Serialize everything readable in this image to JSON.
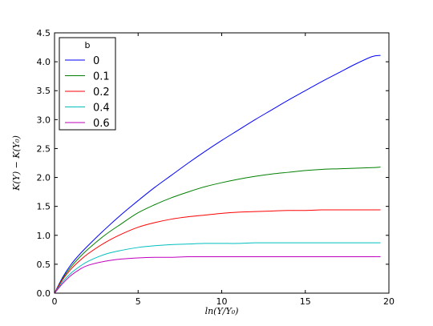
{
  "chart_data": {
    "type": "line",
    "title": "",
    "xlabel": "ln(Y/Y₀)",
    "ylabel": "K(Y) − K(Y₀)",
    "xlim": [
      0,
      20
    ],
    "ylim": [
      0,
      4.5
    ],
    "xticks": [
      "0",
      "5",
      "10",
      "15",
      "20"
    ],
    "yticks": [
      "0.0",
      "0.5",
      "1.0",
      "1.5",
      "2.0",
      "2.5",
      "3.0",
      "3.5",
      "4.0",
      "4.5"
    ],
    "grid": false,
    "legend": {
      "title": "b",
      "placement": "top-left"
    },
    "x": [
      0,
      0.5,
      1,
      1.5,
      2,
      3,
      4,
      5,
      6,
      7,
      8,
      9,
      10,
      11,
      12,
      13,
      14,
      15,
      16,
      17,
      18,
      19,
      19.5
    ],
    "series": [
      {
        "name": "0",
        "color": "#0000ff",
        "values": [
          0,
          0.28,
          0.5,
          0.67,
          0.82,
          1.1,
          1.36,
          1.6,
          1.83,
          2.04,
          2.25,
          2.45,
          2.64,
          2.82,
          3.0,
          3.17,
          3.34,
          3.5,
          3.66,
          3.81,
          3.96,
          4.09,
          4.11
        ]
      },
      {
        "name": "0.1",
        "color": "#008000",
        "values": [
          0,
          0.26,
          0.46,
          0.62,
          0.76,
          1.0,
          1.2,
          1.39,
          1.53,
          1.65,
          1.75,
          1.84,
          1.91,
          1.97,
          2.02,
          2.06,
          2.09,
          2.12,
          2.14,
          2.15,
          2.16,
          2.17,
          2.18
        ]
      },
      {
        "name": "0.2",
        "color": "#ff0000",
        "values": [
          0,
          0.24,
          0.42,
          0.56,
          0.68,
          0.87,
          1.02,
          1.14,
          1.22,
          1.28,
          1.32,
          1.35,
          1.38,
          1.4,
          1.41,
          1.42,
          1.43,
          1.43,
          1.44,
          1.44,
          1.44,
          1.44,
          1.44
        ]
      },
      {
        "name": "0.4",
        "color": "#00bfbf",
        "values": [
          0,
          0.2,
          0.35,
          0.46,
          0.55,
          0.67,
          0.74,
          0.79,
          0.82,
          0.84,
          0.85,
          0.86,
          0.86,
          0.86,
          0.87,
          0.87,
          0.87,
          0.87,
          0.87,
          0.87,
          0.87,
          0.87,
          0.87
        ]
      },
      {
        "name": "0.6",
        "color": "#bf00bf",
        "values": [
          0,
          0.17,
          0.31,
          0.41,
          0.48,
          0.55,
          0.59,
          0.61,
          0.62,
          0.62,
          0.63,
          0.63,
          0.63,
          0.63,
          0.63,
          0.63,
          0.63,
          0.63,
          0.63,
          0.63,
          0.63,
          0.63,
          0.63
        ]
      }
    ]
  }
}
